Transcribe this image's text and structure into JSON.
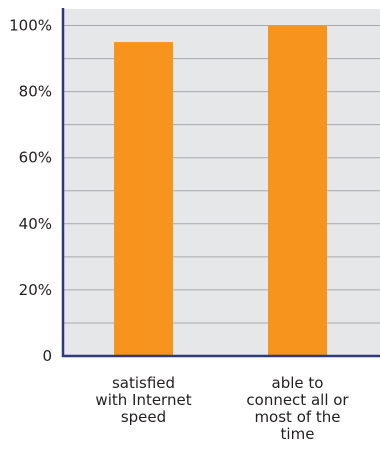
{
  "chart_data": {
    "type": "bar",
    "categories": [
      [
        "satisfied",
        "with Internet",
        "speed"
      ],
      [
        "able to",
        "connect all or",
        "most of the",
        "time"
      ]
    ],
    "values": [
      95,
      100
    ],
    "ylim": [
      0,
      105
    ],
    "y_ticks": [
      0,
      20,
      40,
      60,
      80,
      100
    ],
    "y_tick_labels": [
      "0",
      "20%",
      "40%",
      "60%",
      "80%",
      "100%"
    ],
    "grid": true,
    "minor_grid": true,
    "legend": "none",
    "title": "",
    "xlabel": "",
    "ylabel": ""
  },
  "colors": {
    "bar": "#f7941d",
    "plot_background": "#e6e7e8",
    "axis": "#2e3a7a",
    "gridline": "#a7a9ac",
    "text": "#231f20"
  }
}
